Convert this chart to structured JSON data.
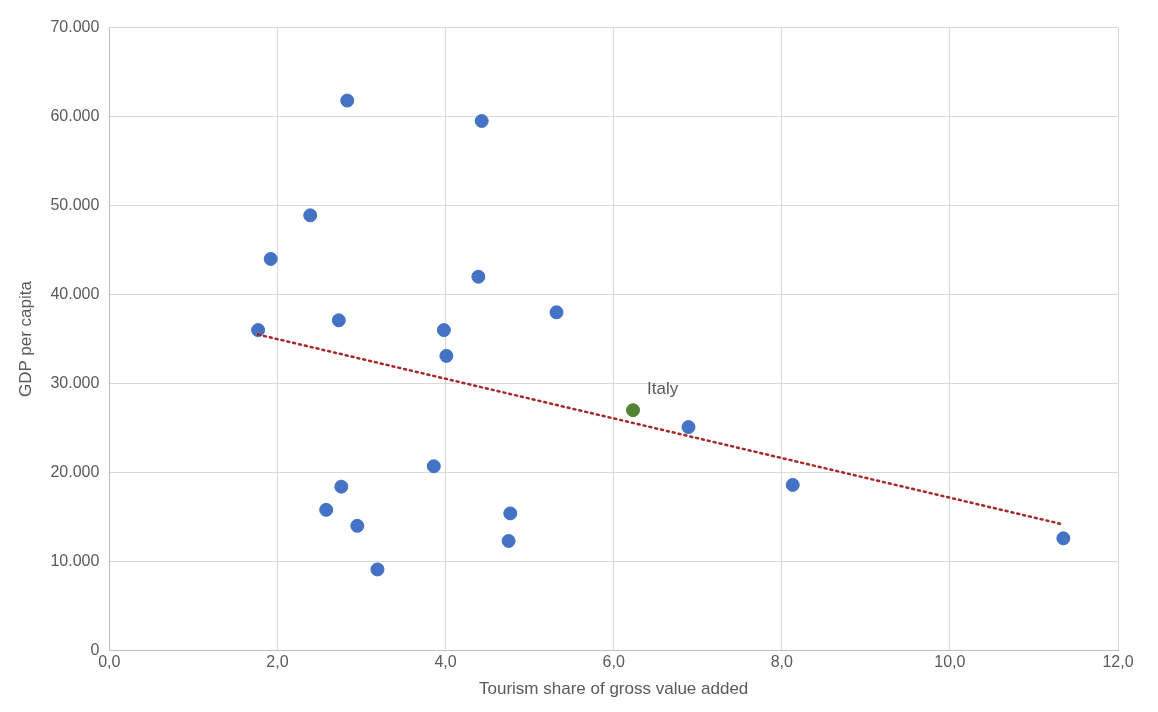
{
  "chart_data": {
    "type": "scatter",
    "xlabel": "Tourism share of gross value added",
    "ylabel": "GDP per capita",
    "xlim": [
      0,
      12
    ],
    "ylim": [
      0,
      70000
    ],
    "xticks": [
      {
        "value": 0,
        "label": "0,0"
      },
      {
        "value": 2,
        "label": "2,0"
      },
      {
        "value": 4,
        "label": "4,0"
      },
      {
        "value": 6,
        "label": "6,0"
      },
      {
        "value": 8,
        "label": "8,0"
      },
      {
        "value": 10,
        "label": "10,0"
      },
      {
        "value": 12,
        "label": "12,0"
      }
    ],
    "yticks": [
      0,
      {
        "value": 10000,
        "label": "10.000"
      },
      {
        "value": 20000,
        "label": "20.000"
      },
      {
        "value": 30000,
        "label": "30.000"
      },
      {
        "value": 40000,
        "label": "40.000"
      },
      {
        "value": 50000,
        "label": "50.000"
      },
      {
        "value": 60000,
        "label": "60.000"
      },
      {
        "value": 70000,
        "label": "70.000"
      }
    ],
    "grid": true,
    "legend": false,
    "marker": "circle",
    "series": [
      {
        "type": "scatter",
        "color": "#4472c4",
        "x": [
          1.77,
          1.92,
          2.39,
          2.83,
          2.73,
          2.76,
          2.58,
          2.95,
          3.19,
          3.86,
          3.98,
          4.01,
          4.43,
          4.39,
          4.77,
          4.75,
          5.32,
          6.89,
          8.13,
          11.35
        ],
        "values": [
          36000,
          44000,
          48900,
          61800,
          37100,
          18400,
          15800,
          14000,
          9100,
          20700,
          36000,
          33100,
          59500,
          42000,
          15400,
          12300,
          38000,
          25100,
          18600,
          12600
        ]
      },
      {
        "type": "scatter",
        "color": "#548235",
        "x": [
          6.23
        ],
        "values": [
          27000
        ]
      },
      {
        "type": "line",
        "color": "#a52a2a",
        "line_style": "dotted",
        "marker": "none",
        "x": [
          1.77,
          11.33
        ],
        "values": [
          35500,
          14200
        ]
      }
    ],
    "annotations": [
      {
        "text": "Italy",
        "x": 6.23,
        "y": 27000
      }
    ]
  }
}
